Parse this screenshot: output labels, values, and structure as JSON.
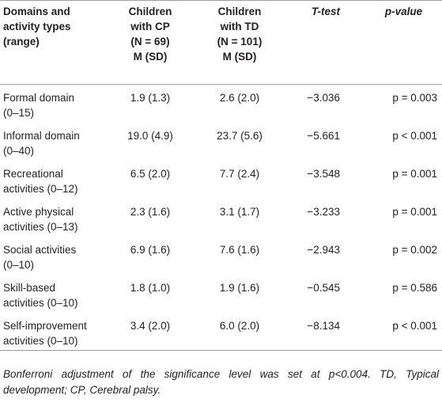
{
  "table": {
    "header": [
      [
        "Domains and",
        "activity types",
        "(range)"
      ],
      [
        "Children",
        "with CP",
        "(N = 69)",
        "M (SD)"
      ],
      [
        "Children",
        "with TD",
        "(N = 101)",
        "M (SD)"
      ],
      [
        "T-test"
      ],
      [
        "p-value"
      ]
    ],
    "rows": [
      [
        [
          "Formal domain",
          "(0–15)"
        ],
        "1.9 (1.3)",
        "2.6 (2.0)",
        "−3.036",
        "p = 0.003"
      ],
      [
        [
          "Informal domain",
          "(0–40)"
        ],
        "19.0 (4.9)",
        "23.7 (5.6)",
        "−5.661",
        "p < 0.001"
      ],
      [
        [
          "Recreational",
          "activities (0–12)"
        ],
        "6.5 (2.0)",
        "7.7 (2.4)",
        "−3.548",
        "p = 0.001"
      ],
      [
        [
          "Active physical",
          "activities (0–13)"
        ],
        "2.3 (1.6)",
        "3.1 (1.7)",
        "−3.233",
        "p = 0.001"
      ],
      [
        [
          "Social activities",
          "(0–10)"
        ],
        "6.9 (1.6)",
        "7.6 (1.6)",
        "−2.943",
        "p = 0.002"
      ],
      [
        [
          "Skill-based",
          "activities (0–10)"
        ],
        "1.8 (1.0)",
        "1.9 (1.6)",
        "−0.545",
        "p = 0.586"
      ],
      [
        [
          "Self-improvement",
          "activities (0–10)"
        ],
        "3.4 (2.0)",
        "6.0 (2.0)",
        "−8.134",
        "p < 0.001"
      ]
    ],
    "footnote": "Bonferroni adjustment of the significance level was set at p<0.004. TD, Typical development; CP, Cerebral palsy."
  }
}
